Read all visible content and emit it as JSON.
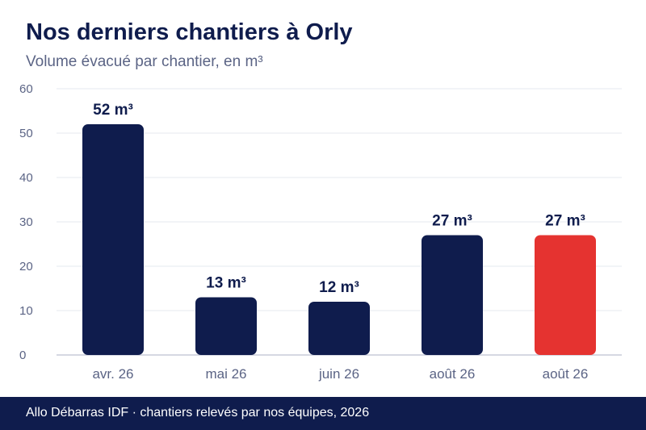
{
  "header": {
    "title": "Nos derniers chantiers à Orly",
    "subtitle": "Volume évacué par chantier, en m³"
  },
  "footer": {
    "text": "Allo Débarras IDF · chantiers relevés par nos équipes, 2026"
  },
  "colors": {
    "bar": "#0f1c4d",
    "highlight": "#e53330",
    "grid": "#e6e8ef",
    "axis": "#c9ccd9",
    "text_muted": "#5b6485",
    "footer_bg": "#0f1c4d"
  },
  "chart_data": {
    "type": "bar",
    "title": "Nos derniers chantiers à Orly",
    "subtitle": "Volume évacué par chantier, en m³",
    "xlabel": "",
    "ylabel": "",
    "categories": [
      "avr. 26",
      "mai 26",
      "juin 26",
      "août 26",
      "août 26"
    ],
    "values": [
      52,
      13,
      12,
      27,
      27
    ],
    "data_labels": [
      "52 m³",
      "13 m³",
      "12 m³",
      "27 m³",
      "27 m³"
    ],
    "highlight_index": 4,
    "ylim": [
      0,
      60
    ],
    "yticks": [
      0,
      10,
      20,
      30,
      40,
      50,
      60
    ],
    "grid": true,
    "legend": "none"
  }
}
